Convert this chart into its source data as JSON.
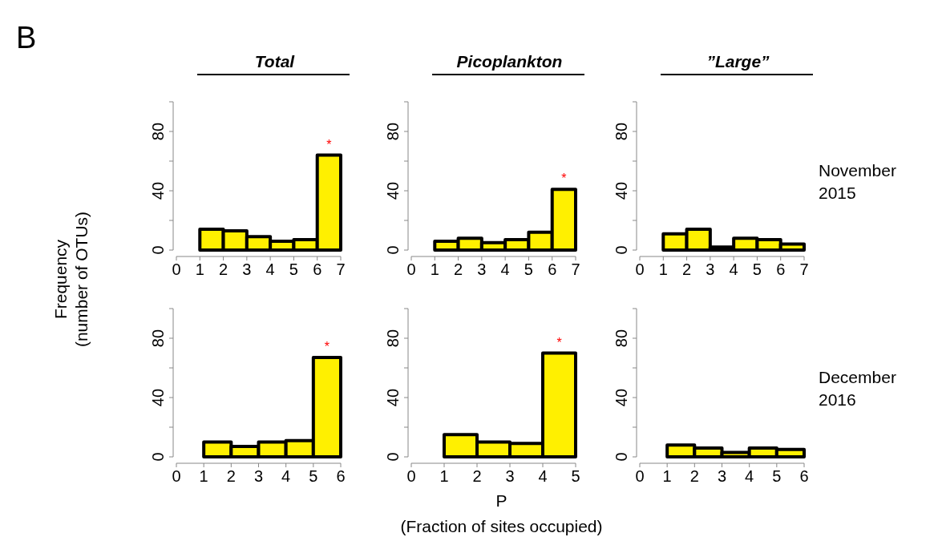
{
  "chart_data": [
    {
      "type": "histogram",
      "title": "Total",
      "ylabel": "Frequency\n(number of OTUs)",
      "annotations": [
        "B",
        "*"
      ],
      "bins": [
        1,
        2,
        3,
        4,
        5,
        6,
        7
      ],
      "values": [
        14,
        13,
        9,
        6,
        7,
        64
      ],
      "color": "#fff000",
      "xlim": [
        0,
        7
      ],
      "xticks": [
        0,
        1,
        2,
        3,
        4,
        5,
        6,
        7
      ],
      "ylim": [
        0,
        100
      ],
      "yticks": [
        0,
        {
          "value": 20,
          "label": null
        },
        40,
        {
          "value": 60,
          "label": null
        },
        80,
        {
          "value": 100,
          "label": null
        }
      ],
      "grid": false
    },
    {
      "type": "histogram",
      "title": "Picoplankton",
      "annotations": [
        "*"
      ],
      "bins": [
        1,
        2,
        3,
        4,
        5,
        6,
        7
      ],
      "values": [
        6,
        8,
        5,
        7,
        12,
        41
      ],
      "color": "#fff000",
      "xlim": [
        0,
        7
      ],
      "xticks": [
        0,
        1,
        2,
        3,
        4,
        5,
        6,
        7
      ],
      "ylim": [
        0,
        100
      ],
      "yticks": [
        0,
        {
          "value": 20,
          "label": null
        },
        40,
        {
          "value": 60,
          "label": null
        },
        80,
        {
          "value": 100,
          "label": null
        }
      ],
      "grid": false
    },
    {
      "type": "histogram",
      "title": "”Large”",
      "annotations": [
        "November 2015"
      ],
      "bins": [
        1,
        2,
        3,
        4,
        5,
        6,
        7
      ],
      "values": [
        11,
        14,
        2,
        8,
        7,
        4
      ],
      "color": "#fff000",
      "xlim": [
        0,
        7
      ],
      "xticks": [
        0,
        1,
        2,
        3,
        4,
        5,
        6,
        7
      ],
      "ylim": [
        0,
        100
      ],
      "yticks": [
        0,
        {
          "value": 20,
          "label": null
        },
        40,
        {
          "value": 60,
          "label": null
        },
        80,
        {
          "value": 100,
          "label": null
        }
      ],
      "grid": false
    },
    {
      "type": "histogram",
      "annotations": [
        "*"
      ],
      "bins": [
        1,
        2,
        3,
        4,
        5,
        6
      ],
      "values": [
        10,
        7,
        10,
        11,
        67
      ],
      "color": "#fff000",
      "xlim": [
        0,
        6
      ],
      "xticks": [
        0,
        1,
        2,
        3,
        4,
        5,
        6
      ],
      "ylim": [
        0,
        100
      ],
      "yticks": [
        0,
        {
          "value": 20,
          "label": null
        },
        40,
        {
          "value": 60,
          "label": null
        },
        80,
        {
          "value": 100,
          "label": null
        }
      ],
      "grid": false
    },
    {
      "type": "histogram",
      "xlabel": "P\n(Fraction of sites occupied)",
      "annotations": [
        "*"
      ],
      "bins": [
        1,
        2,
        3,
        4,
        5
      ],
      "values": [
        15,
        10,
        9,
        70
      ],
      "color": "#fff000",
      "xlim": [
        0,
        5
      ],
      "xticks": [
        0,
        1,
        2,
        3,
        4,
        5
      ],
      "ylim": [
        0,
        100
      ],
      "yticks": [
        0,
        {
          "value": 20,
          "label": null
        },
        40,
        {
          "value": 60,
          "label": null
        },
        80,
        {
          "value": 100,
          "label": null
        }
      ],
      "grid": false
    },
    {
      "type": "histogram",
      "annotations": [
        "December 2016"
      ],
      "bins": [
        1,
        2,
        3,
        4,
        5,
        6
      ],
      "values": [
        8,
        6,
        3,
        6,
        5
      ],
      "color": "#fff000",
      "xlim": [
        0,
        6
      ],
      "xticks": [
        0,
        1,
        2,
        3,
        4,
        5,
        6
      ],
      "ylim": [
        0,
        100
      ],
      "yticks": [
        0,
        {
          "value": 20,
          "label": null
        },
        40,
        {
          "value": 60,
          "label": null
        },
        80,
        {
          "value": 100,
          "label": null
        }
      ],
      "grid": false
    }
  ]
}
